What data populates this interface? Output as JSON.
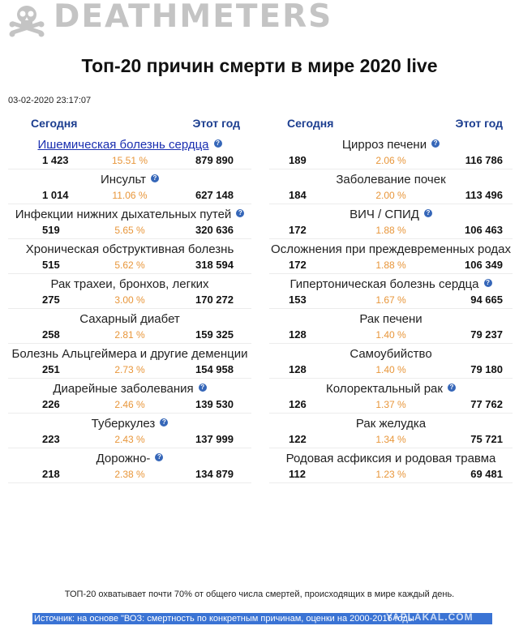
{
  "header": {
    "logo_text": "DEATHMETERS",
    "logo_icon": "skull-crossbones-icon"
  },
  "page": {
    "title": "Топ-20 причин смерти в мире 2020 live",
    "timestamp": "03-02-2020 23:17:07"
  },
  "columns": {
    "today_label": "Сегодня",
    "year_label": "Этот год"
  },
  "left_items": [
    {
      "name": "Ишемическая болезнь сердца",
      "today": "1 423",
      "pct": "15.51 %",
      "year": "879 890",
      "icon": true,
      "link": true
    },
    {
      "name": "Инсульт",
      "today": "1 014",
      "pct": "11.06 %",
      "year": "627 148",
      "icon": true,
      "link": false
    },
    {
      "name": "Инфекции нижних дыхательных путей",
      "today": "519",
      "pct": "5.65 %",
      "year": "320 636",
      "icon": true,
      "link": false
    },
    {
      "name": "Хроническая обструктивная болезнь",
      "today": "515",
      "pct": "5.62 %",
      "year": "318 594",
      "icon": false,
      "link": false
    },
    {
      "name": "Рак трахеи, бронхов, легких",
      "today": "275",
      "pct": "3.00 %",
      "year": "170 272",
      "icon": false,
      "link": false
    },
    {
      "name": "Сахарный диабет",
      "today": "258",
      "pct": "2.81 %",
      "year": "159 325",
      "icon": false,
      "link": false
    },
    {
      "name": "Болезнь Альцгеймера и другие деменции",
      "today": "251",
      "pct": "2.73 %",
      "year": "154 958",
      "icon": false,
      "link": false
    },
    {
      "name": "Диарейные заболевания",
      "today": "226",
      "pct": "2.46 %",
      "year": "139 530",
      "icon": true,
      "link": false
    },
    {
      "name": "Туберкулез",
      "today": "223",
      "pct": "2.43 %",
      "year": "137 999",
      "icon": true,
      "link": false
    },
    {
      "name": "Дорожно-",
      "today": "218",
      "pct": "2.38 %",
      "year": "134 879",
      "icon": true,
      "link": false
    }
  ],
  "right_items": [
    {
      "name": "Цирроз печени",
      "today": "189",
      "pct": "2.06 %",
      "year": "116 786",
      "icon": true,
      "link": false
    },
    {
      "name": "Заболевание почек",
      "today": "184",
      "pct": "2.00 %",
      "year": "113 496",
      "icon": false,
      "link": false
    },
    {
      "name": "ВИЧ / СПИД",
      "today": "172",
      "pct": "1.88 %",
      "year": "106 463",
      "icon": true,
      "link": false
    },
    {
      "name": "Осложнения при преждевременных родах",
      "today": "172",
      "pct": "1.88 %",
      "year": "106 349",
      "icon": false,
      "link": false
    },
    {
      "name": "Гипертоническая болезнь сердца",
      "today": "153",
      "pct": "1.67 %",
      "year": "94 665",
      "icon": true,
      "link": false
    },
    {
      "name": "Рак печени",
      "today": "128",
      "pct": "1.40 %",
      "year": "79 237",
      "icon": false,
      "link": false
    },
    {
      "name": "Самоубийство",
      "today": "128",
      "pct": "1.40 %",
      "year": "79 180",
      "icon": false,
      "link": false
    },
    {
      "name": "Колоректальный рак",
      "today": "126",
      "pct": "1.37 %",
      "year": "77 762",
      "icon": true,
      "link": false
    },
    {
      "name": "Рак желудка",
      "today": "122",
      "pct": "1.34 %",
      "year": "75 721",
      "icon": false,
      "link": false
    },
    {
      "name": "Родовая асфиксия и родовая травма",
      "today": "112",
      "pct": "1.23 %",
      "year": "69 481",
      "icon": false,
      "link": false
    }
  ],
  "help_icon_glyph": "?",
  "footer": {
    "note": "ТОП-20 охватывает почти 70% от общего числа смертей, происходящих в мире каждый день.",
    "source": "Источник: на основе \"ВОЗ: смертность по конкретным причинам, оценки на 2000-2016 годы",
    "watermark": "YAPLAKAL.COM"
  },
  "colors": {
    "heading_blue": "#1b3d8f",
    "percent_orange": "#e8963a",
    "help_icon_blue": "#3566b8",
    "selection_blue": "#3a73d4",
    "logo_grey": "#c4c4c4"
  }
}
